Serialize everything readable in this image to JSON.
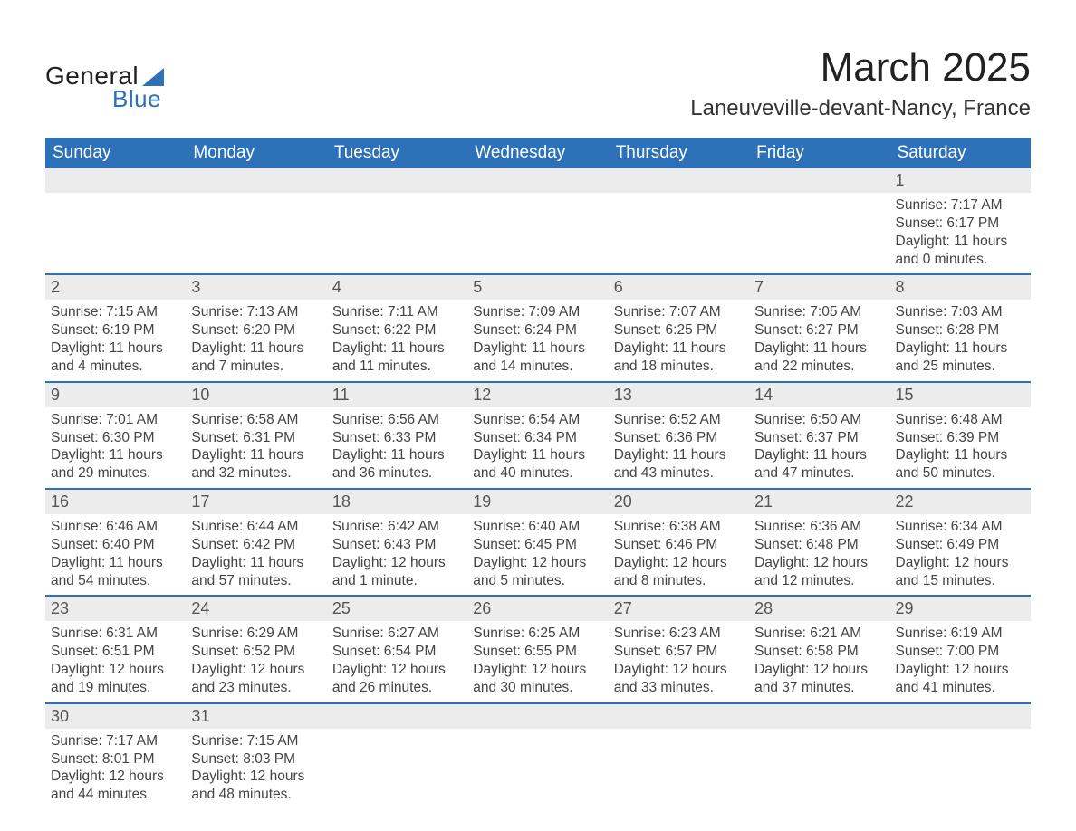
{
  "logo": {
    "word1": "General",
    "word2": "Blue"
  },
  "title": "March 2025",
  "location": "Laneuveville-devant-Nancy, France",
  "colors": {
    "header_bg": "#2d72b8",
    "header_text": "#ffffff",
    "daynum_bg": "#ececec",
    "row_border": "#2d72b8",
    "body_text": "#444444",
    "page_bg": "#ffffff"
  },
  "typography": {
    "title_fontsize": 44,
    "location_fontsize": 24,
    "dayheader_fontsize": 19,
    "daynum_fontsize": 18,
    "cell_fontsize": 15.5,
    "font_family": "Arial"
  },
  "day_headers": [
    "Sunday",
    "Monday",
    "Tuesday",
    "Wednesday",
    "Thursday",
    "Friday",
    "Saturday"
  ],
  "weeks": [
    [
      null,
      null,
      null,
      null,
      null,
      null,
      {
        "n": "1",
        "sr": "Sunrise: 7:17 AM",
        "ss": "Sunset: 6:17 PM",
        "d1": "Daylight: 11 hours",
        "d2": "and 0 minutes."
      }
    ],
    [
      {
        "n": "2",
        "sr": "Sunrise: 7:15 AM",
        "ss": "Sunset: 6:19 PM",
        "d1": "Daylight: 11 hours",
        "d2": "and 4 minutes."
      },
      {
        "n": "3",
        "sr": "Sunrise: 7:13 AM",
        "ss": "Sunset: 6:20 PM",
        "d1": "Daylight: 11 hours",
        "d2": "and 7 minutes."
      },
      {
        "n": "4",
        "sr": "Sunrise: 7:11 AM",
        "ss": "Sunset: 6:22 PM",
        "d1": "Daylight: 11 hours",
        "d2": "and 11 minutes."
      },
      {
        "n": "5",
        "sr": "Sunrise: 7:09 AM",
        "ss": "Sunset: 6:24 PM",
        "d1": "Daylight: 11 hours",
        "d2": "and 14 minutes."
      },
      {
        "n": "6",
        "sr": "Sunrise: 7:07 AM",
        "ss": "Sunset: 6:25 PM",
        "d1": "Daylight: 11 hours",
        "d2": "and 18 minutes."
      },
      {
        "n": "7",
        "sr": "Sunrise: 7:05 AM",
        "ss": "Sunset: 6:27 PM",
        "d1": "Daylight: 11 hours",
        "d2": "and 22 minutes."
      },
      {
        "n": "8",
        "sr": "Sunrise: 7:03 AM",
        "ss": "Sunset: 6:28 PM",
        "d1": "Daylight: 11 hours",
        "d2": "and 25 minutes."
      }
    ],
    [
      {
        "n": "9",
        "sr": "Sunrise: 7:01 AM",
        "ss": "Sunset: 6:30 PM",
        "d1": "Daylight: 11 hours",
        "d2": "and 29 minutes."
      },
      {
        "n": "10",
        "sr": "Sunrise: 6:58 AM",
        "ss": "Sunset: 6:31 PM",
        "d1": "Daylight: 11 hours",
        "d2": "and 32 minutes."
      },
      {
        "n": "11",
        "sr": "Sunrise: 6:56 AM",
        "ss": "Sunset: 6:33 PM",
        "d1": "Daylight: 11 hours",
        "d2": "and 36 minutes."
      },
      {
        "n": "12",
        "sr": "Sunrise: 6:54 AM",
        "ss": "Sunset: 6:34 PM",
        "d1": "Daylight: 11 hours",
        "d2": "and 40 minutes."
      },
      {
        "n": "13",
        "sr": "Sunrise: 6:52 AM",
        "ss": "Sunset: 6:36 PM",
        "d1": "Daylight: 11 hours",
        "d2": "and 43 minutes."
      },
      {
        "n": "14",
        "sr": "Sunrise: 6:50 AM",
        "ss": "Sunset: 6:37 PM",
        "d1": "Daylight: 11 hours",
        "d2": "and 47 minutes."
      },
      {
        "n": "15",
        "sr": "Sunrise: 6:48 AM",
        "ss": "Sunset: 6:39 PM",
        "d1": "Daylight: 11 hours",
        "d2": "and 50 minutes."
      }
    ],
    [
      {
        "n": "16",
        "sr": "Sunrise: 6:46 AM",
        "ss": "Sunset: 6:40 PM",
        "d1": "Daylight: 11 hours",
        "d2": "and 54 minutes."
      },
      {
        "n": "17",
        "sr": "Sunrise: 6:44 AM",
        "ss": "Sunset: 6:42 PM",
        "d1": "Daylight: 11 hours",
        "d2": "and 57 minutes."
      },
      {
        "n": "18",
        "sr": "Sunrise: 6:42 AM",
        "ss": "Sunset: 6:43 PM",
        "d1": "Daylight: 12 hours",
        "d2": "and 1 minute."
      },
      {
        "n": "19",
        "sr": "Sunrise: 6:40 AM",
        "ss": "Sunset: 6:45 PM",
        "d1": "Daylight: 12 hours",
        "d2": "and 5 minutes."
      },
      {
        "n": "20",
        "sr": "Sunrise: 6:38 AM",
        "ss": "Sunset: 6:46 PM",
        "d1": "Daylight: 12 hours",
        "d2": "and 8 minutes."
      },
      {
        "n": "21",
        "sr": "Sunrise: 6:36 AM",
        "ss": "Sunset: 6:48 PM",
        "d1": "Daylight: 12 hours",
        "d2": "and 12 minutes."
      },
      {
        "n": "22",
        "sr": "Sunrise: 6:34 AM",
        "ss": "Sunset: 6:49 PM",
        "d1": "Daylight: 12 hours",
        "d2": "and 15 minutes."
      }
    ],
    [
      {
        "n": "23",
        "sr": "Sunrise: 6:31 AM",
        "ss": "Sunset: 6:51 PM",
        "d1": "Daylight: 12 hours",
        "d2": "and 19 minutes."
      },
      {
        "n": "24",
        "sr": "Sunrise: 6:29 AM",
        "ss": "Sunset: 6:52 PM",
        "d1": "Daylight: 12 hours",
        "d2": "and 23 minutes."
      },
      {
        "n": "25",
        "sr": "Sunrise: 6:27 AM",
        "ss": "Sunset: 6:54 PM",
        "d1": "Daylight: 12 hours",
        "d2": "and 26 minutes."
      },
      {
        "n": "26",
        "sr": "Sunrise: 6:25 AM",
        "ss": "Sunset: 6:55 PM",
        "d1": "Daylight: 12 hours",
        "d2": "and 30 minutes."
      },
      {
        "n": "27",
        "sr": "Sunrise: 6:23 AM",
        "ss": "Sunset: 6:57 PM",
        "d1": "Daylight: 12 hours",
        "d2": "and 33 minutes."
      },
      {
        "n": "28",
        "sr": "Sunrise: 6:21 AM",
        "ss": "Sunset: 6:58 PM",
        "d1": "Daylight: 12 hours",
        "d2": "and 37 minutes."
      },
      {
        "n": "29",
        "sr": "Sunrise: 6:19 AM",
        "ss": "Sunset: 7:00 PM",
        "d1": "Daylight: 12 hours",
        "d2": "and 41 minutes."
      }
    ],
    [
      {
        "n": "30",
        "sr": "Sunrise: 7:17 AM",
        "ss": "Sunset: 8:01 PM",
        "d1": "Daylight: 12 hours",
        "d2": "and 44 minutes."
      },
      {
        "n": "31",
        "sr": "Sunrise: 7:15 AM",
        "ss": "Sunset: 8:03 PM",
        "d1": "Daylight: 12 hours",
        "d2": "and 48 minutes."
      },
      null,
      null,
      null,
      null,
      null
    ]
  ]
}
